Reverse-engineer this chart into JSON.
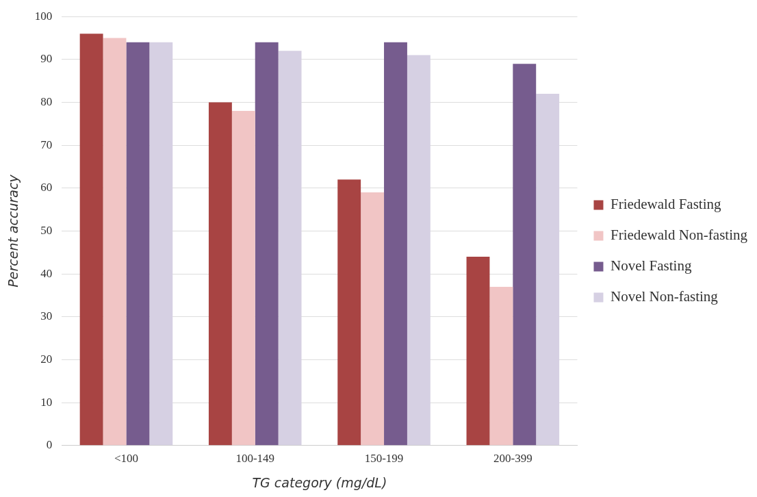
{
  "chart_data": {
    "type": "bar",
    "xlabel": "TG category (mg/dL)",
    "ylabel": "Percent accuracy",
    "categories": [
      "<100",
      "100-149",
      "150-199",
      "200-399"
    ],
    "series": [
      {
        "name": "Friedewald Fasting",
        "color": "#a84443",
        "values": [
          96,
          80,
          62,
          44
        ]
      },
      {
        "name": "Friedewald Non-fasting",
        "color": "#f1c5c5",
        "values": [
          95,
          78,
          59,
          37
        ]
      },
      {
        "name": "Novel Fasting",
        "color": "#765c8e",
        "values": [
          94,
          94,
          94,
          89
        ]
      },
      {
        "name": "Novel Non-fasting",
        "color": "#d6d0e3",
        "values": [
          94,
          92,
          91,
          82
        ]
      }
    ],
    "ylim": [
      0,
      100
    ],
    "yticks": [
      0,
      10,
      20,
      30,
      40,
      50,
      60,
      70,
      80,
      90,
      100
    ],
    "grid": "y",
    "legend": "right"
  }
}
